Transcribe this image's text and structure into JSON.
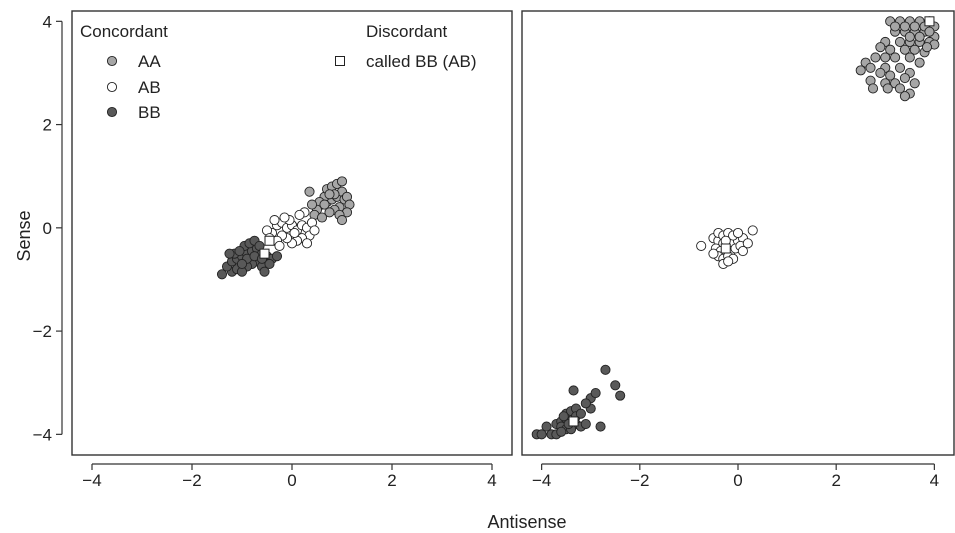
{
  "chart_data": {
    "type": "scatter",
    "xlabel": "Antisense",
    "ylabel": "Sense",
    "xlim": [
      -4.4,
      4.4
    ],
    "ylim": [
      -4.4,
      4.2
    ],
    "xticks": [
      -4,
      -2,
      0,
      2,
      4
    ],
    "yticks": [
      -4,
      -2,
      0,
      2,
      4
    ],
    "x_tick_labels": [
      "−4",
      "−2",
      "0",
      "2",
      "4"
    ],
    "y_tick_labels": [
      "−4",
      "−2",
      "0",
      "2",
      "4"
    ],
    "grid": false,
    "legend": {
      "concordant_title": "Concordant",
      "discordant_title": "Discordant",
      "entries": [
        {
          "label": "AA",
          "marker": "circle",
          "color": "#a6a6a6"
        },
        {
          "label": "AB",
          "marker": "circle",
          "color": "#ffffff"
        },
        {
          "label": "BB",
          "marker": "circle",
          "color": "#595959"
        },
        {
          "label": "called BB (AB)",
          "marker": "square",
          "color": "#ffffff"
        }
      ]
    },
    "panels": [
      {
        "series": [
          {
            "label": "AA",
            "marker": "circle",
            "color": "#a6a6a6",
            "points": [
              [
                0.6,
                0.45
              ],
              [
                0.7,
                0.5
              ],
              [
                0.8,
                0.55
              ],
              [
                0.9,
                0.6
              ],
              [
                1.0,
                0.7
              ],
              [
                1.05,
                0.55
              ],
              [
                0.95,
                0.4
              ],
              [
                0.85,
                0.35
              ],
              [
                0.75,
                0.3
              ],
              [
                0.65,
                0.6
              ],
              [
                0.55,
                0.5
              ],
              [
                0.5,
                0.35
              ],
              [
                0.45,
                0.25
              ],
              [
                0.7,
                0.75
              ],
              [
                0.8,
                0.8
              ],
              [
                0.9,
                0.85
              ],
              [
                1.0,
                0.9
              ],
              [
                1.1,
                0.6
              ],
              [
                1.15,
                0.45
              ],
              [
                1.1,
                0.3
              ],
              [
                0.95,
                0.25
              ],
              [
                0.35,
                0.7
              ],
              [
                0.6,
                0.2
              ],
              [
                0.4,
                0.45
              ],
              [
                0.85,
                0.65
              ],
              [
                0.75,
                0.65
              ],
              [
                0.65,
                0.45
              ],
              [
                1.0,
                0.15
              ]
            ]
          },
          {
            "label": "AB",
            "marker": "circle",
            "color": "#ffffff",
            "points": [
              [
                -0.3,
                0.05
              ],
              [
                -0.2,
                0.1
              ],
              [
                -0.1,
                0.0
              ],
              [
                0.0,
                0.05
              ],
              [
                0.1,
                -0.05
              ],
              [
                0.2,
                0.05
              ],
              [
                0.3,
                0.0
              ],
              [
                0.35,
                -0.15
              ],
              [
                0.2,
                -0.2
              ],
              [
                0.1,
                -0.25
              ],
              [
                0.0,
                -0.3
              ],
              [
                -0.1,
                -0.2
              ],
              [
                -0.2,
                -0.15
              ],
              [
                -0.4,
                -0.1
              ],
              [
                -0.5,
                -0.05
              ],
              [
                -0.3,
                -0.25
              ],
              [
                0.25,
                0.3
              ],
              [
                0.15,
                0.25
              ],
              [
                -0.05,
                0.15
              ],
              [
                -0.15,
                0.2
              ],
              [
                0.4,
                0.1
              ],
              [
                0.45,
                -0.05
              ],
              [
                -0.25,
                -0.35
              ],
              [
                -0.45,
                -0.2
              ],
              [
                0.05,
                -0.1
              ],
              [
                0.3,
                -0.3
              ],
              [
                -0.35,
                0.15
              ]
            ]
          },
          {
            "label": "BB",
            "marker": "circle",
            "color": "#595959",
            "points": [
              [
                -1.4,
                -0.9
              ],
              [
                -1.2,
                -0.85
              ],
              [
                -1.1,
                -0.8
              ],
              [
                -1.3,
                -0.75
              ],
              [
                -1.2,
                -0.65
              ],
              [
                -1.1,
                -0.6
              ],
              [
                -1.0,
                -0.55
              ],
              [
                -0.9,
                -0.5
              ],
              [
                -0.8,
                -0.45
              ],
              [
                -0.7,
                -0.4
              ],
              [
                -0.6,
                -0.5
              ],
              [
                -0.5,
                -0.55
              ],
              [
                -0.4,
                -0.6
              ],
              [
                -0.7,
                -0.65
              ],
              [
                -0.8,
                -0.7
              ],
              [
                -0.9,
                -0.75
              ],
              [
                -1.0,
                -0.85
              ],
              [
                -1.15,
                -0.5
              ],
              [
                -0.95,
                -0.35
              ],
              [
                -0.85,
                -0.3
              ],
              [
                -0.75,
                -0.25
              ],
              [
                -0.6,
                -0.75
              ],
              [
                -0.55,
                -0.85
              ],
              [
                -1.05,
                -0.45
              ],
              [
                -1.25,
                -0.5
              ],
              [
                -0.65,
                -0.35
              ],
              [
                -0.45,
                -0.7
              ],
              [
                -0.3,
                -0.55
              ],
              [
                -0.9,
                -0.6
              ],
              [
                -1.0,
                -0.7
              ],
              [
                -0.75,
                -0.55
              ],
              [
                -0.6,
                -0.6
              ]
            ]
          },
          {
            "label": "called BB (AB)",
            "marker": "square",
            "color": "#ffffff",
            "points": [
              [
                -0.55,
                -0.5
              ],
              [
                -0.45,
                -0.25
              ]
            ]
          }
        ]
      },
      {
        "series": [
          {
            "label": "AA",
            "marker": "circle",
            "color": "#a6a6a6",
            "points": [
              [
                3.1,
                4.0
              ],
              [
                3.3,
                4.0
              ],
              [
                3.5,
                4.0
              ],
              [
                3.7,
                4.0
              ],
              [
                3.9,
                4.0
              ],
              [
                4.0,
                3.9
              ],
              [
                3.2,
                3.8
              ],
              [
                3.4,
                3.8
              ],
              [
                3.6,
                3.8
              ],
              [
                3.8,
                3.8
              ],
              [
                4.0,
                3.7
              ],
              [
                3.0,
                3.6
              ],
              [
                3.3,
                3.6
              ],
              [
                3.5,
                3.6
              ],
              [
                3.7,
                3.6
              ],
              [
                3.9,
                3.6
              ],
              [
                2.9,
                3.5
              ],
              [
                3.1,
                3.45
              ],
              [
                3.4,
                3.45
              ],
              [
                3.6,
                3.45
              ],
              [
                3.8,
                3.4
              ],
              [
                2.8,
                3.3
              ],
              [
                3.0,
                3.3
              ],
              [
                3.2,
                3.3
              ],
              [
                3.5,
                3.3
              ],
              [
                3.7,
                3.2
              ],
              [
                2.6,
                3.2
              ],
              [
                2.7,
                3.1
              ],
              [
                3.0,
                3.1
              ],
              [
                3.3,
                3.1
              ],
              [
                3.5,
                3.0
              ],
              [
                2.5,
                3.05
              ],
              [
                2.9,
                3.0
              ],
              [
                3.1,
                2.95
              ],
              [
                3.4,
                2.9
              ],
              [
                2.7,
                2.85
              ],
              [
                3.0,
                2.8
              ],
              [
                3.2,
                2.8
              ],
              [
                3.6,
                2.8
              ],
              [
                2.75,
                2.7
              ],
              [
                3.05,
                2.7
              ],
              [
                3.3,
                2.7
              ],
              [
                3.5,
                2.6
              ],
              [
                3.4,
                2.55
              ],
              [
                3.8,
                3.9
              ],
              [
                3.6,
                3.9
              ],
              [
                3.4,
                3.9
              ],
              [
                3.2,
                3.9
              ],
              [
                3.7,
                3.7
              ],
              [
                3.5,
                3.7
              ],
              [
                3.9,
                3.8
              ],
              [
                4.0,
                3.55
              ],
              [
                3.85,
                3.5
              ]
            ]
          },
          {
            "label": "AB",
            "marker": "circle",
            "color": "#ffffff",
            "points": [
              [
                -0.5,
                -0.2
              ],
              [
                -0.4,
                -0.25
              ],
              [
                -0.3,
                -0.3
              ],
              [
                -0.2,
                -0.35
              ],
              [
                -0.1,
                -0.3
              ],
              [
                0.0,
                -0.25
              ],
              [
                0.1,
                -0.2
              ],
              [
                -0.45,
                -0.4
              ],
              [
                -0.35,
                -0.45
              ],
              [
                -0.25,
                -0.5
              ],
              [
                -0.15,
                -0.45
              ],
              [
                -0.05,
                -0.4
              ],
              [
                0.05,
                -0.35
              ],
              [
                -0.4,
                -0.55
              ],
              [
                -0.3,
                -0.6
              ],
              [
                -0.2,
                -0.55
              ],
              [
                -0.1,
                -0.6
              ],
              [
                -0.3,
                -0.7
              ],
              [
                -0.2,
                -0.65
              ],
              [
                -0.4,
                -0.1
              ],
              [
                -0.3,
                -0.15
              ],
              [
                -0.2,
                -0.1
              ],
              [
                -0.1,
                -0.15
              ],
              [
                0.0,
                -0.1
              ],
              [
                0.3,
                -0.05
              ],
              [
                0.2,
                -0.3
              ],
              [
                -0.75,
                -0.35
              ],
              [
                -0.5,
                -0.5
              ],
              [
                0.1,
                -0.45
              ],
              [
                -0.25,
                -0.25
              ]
            ]
          },
          {
            "label": "BB",
            "marker": "circle",
            "color": "#595959",
            "points": [
              [
                -4.1,
                -4.0
              ],
              [
                -4.0,
                -4.0
              ],
              [
                -3.8,
                -4.0
              ],
              [
                -3.7,
                -4.0
              ],
              [
                -3.9,
                -3.85
              ],
              [
                -3.7,
                -3.8
              ],
              [
                -3.6,
                -3.75
              ],
              [
                -3.5,
                -3.7
              ],
              [
                -3.4,
                -3.75
              ],
              [
                -3.3,
                -3.8
              ],
              [
                -3.2,
                -3.85
              ],
              [
                -3.1,
                -3.8
              ],
              [
                -3.5,
                -3.6
              ],
              [
                -3.4,
                -3.55
              ],
              [
                -3.3,
                -3.5
              ],
              [
                -3.6,
                -3.85
              ],
              [
                -3.5,
                -3.9
              ],
              [
                -3.4,
                -3.9
              ],
              [
                -3.3,
                -3.65
              ],
              [
                -3.2,
                -3.6
              ],
              [
                -3.0,
                -3.5
              ],
              [
                -3.0,
                -3.3
              ],
              [
                -3.1,
                -3.4
              ],
              [
                -2.7,
                -2.75
              ],
              [
                -2.5,
                -3.05
              ],
              [
                -2.4,
                -3.25
              ],
              [
                -2.9,
                -3.2
              ],
              [
                -3.35,
                -3.15
              ],
              [
                -2.8,
                -3.85
              ],
              [
                -3.6,
                -3.95
              ],
              [
                -3.45,
                -3.8
              ],
              [
                -3.55,
                -3.65
              ]
            ]
          },
          {
            "label": "called BB (AB)",
            "marker": "square",
            "color": "#ffffff",
            "points": [
              [
                -0.25,
                -0.4
              ],
              [
                -3.35,
                -3.75
              ],
              [
                3.9,
                4.0
              ]
            ]
          }
        ]
      }
    ]
  }
}
